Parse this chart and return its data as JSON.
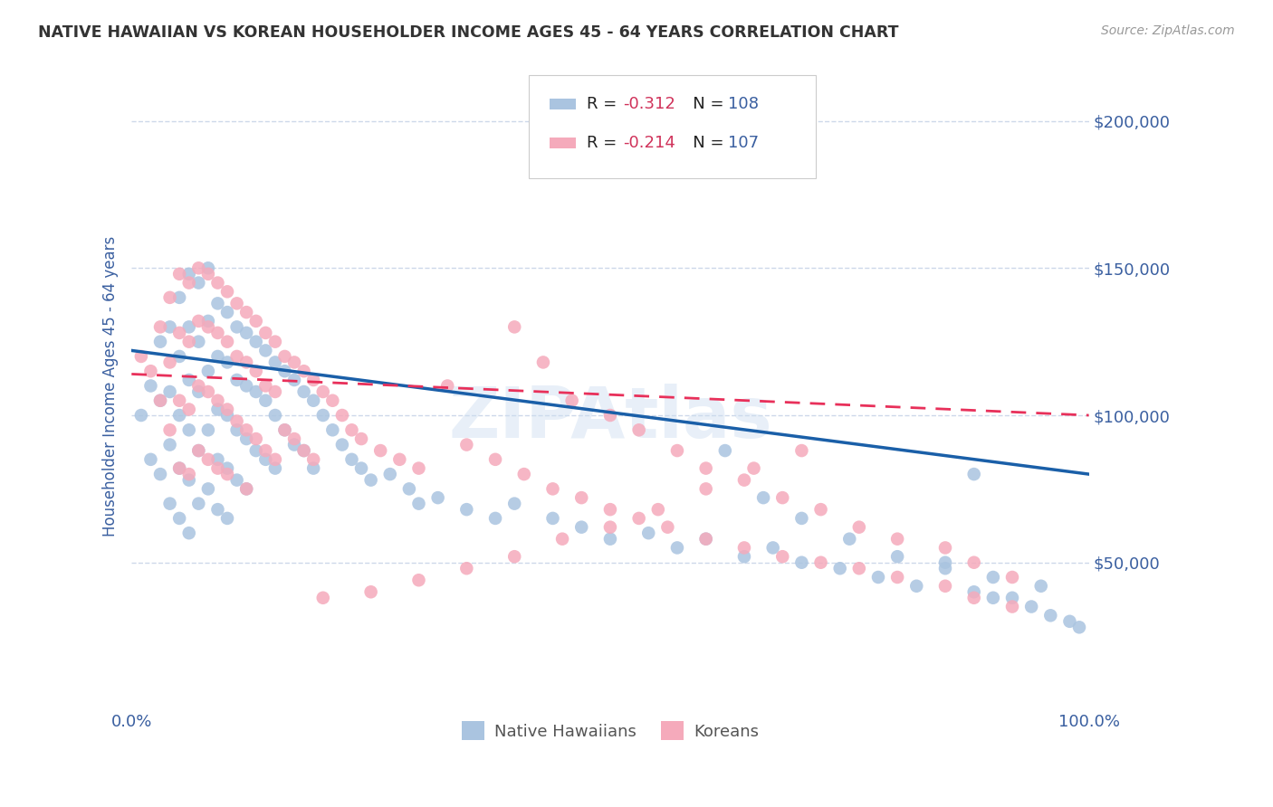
{
  "title": "NATIVE HAWAIIAN VS KOREAN HOUSEHOLDER INCOME AGES 45 - 64 YEARS CORRELATION CHART",
  "source": "Source: ZipAtlas.com",
  "ylabel": "Householder Income Ages 45 - 64 years",
  "ylim": [
    0,
    220000
  ],
  "xlim": [
    0,
    1.0
  ],
  "yticks": [
    50000,
    100000,
    150000,
    200000
  ],
  "ytick_labels": [
    "$50,000",
    "$100,000",
    "$150,000",
    "$200,000"
  ],
  "xtick_labels": [
    "0.0%",
    "100.0%"
  ],
  "hawaiian_color": "#aac4e0",
  "korean_color": "#f5aabb",
  "hawaiian_line_color": "#1a5fa8",
  "korean_line_color": "#e8305a",
  "hawaiian_R": "-0.312",
  "hawaiian_N": "108",
  "korean_R": "-0.214",
  "korean_N": "107",
  "hawaiian_intercept": 122000,
  "hawaiian_slope": -42000,
  "korean_intercept": 114000,
  "korean_slope": -14000,
  "background_color": "#ffffff",
  "grid_color": "#c8d4e8",
  "title_color": "#333333",
  "axis_label_color": "#3a5fa0",
  "tick_label_color": "#3a5fa0",
  "r_value_color": "#d0325a",
  "n_value_color": "#3a5fa0",
  "watermark": "ZIPAtlas",
  "hawaiian_scatter_x": [
    0.01,
    0.02,
    0.02,
    0.03,
    0.03,
    0.03,
    0.04,
    0.04,
    0.04,
    0.04,
    0.05,
    0.05,
    0.05,
    0.05,
    0.05,
    0.06,
    0.06,
    0.06,
    0.06,
    0.06,
    0.06,
    0.07,
    0.07,
    0.07,
    0.07,
    0.07,
    0.08,
    0.08,
    0.08,
    0.08,
    0.08,
    0.09,
    0.09,
    0.09,
    0.09,
    0.09,
    0.1,
    0.1,
    0.1,
    0.1,
    0.1,
    0.11,
    0.11,
    0.11,
    0.11,
    0.12,
    0.12,
    0.12,
    0.12,
    0.13,
    0.13,
    0.13,
    0.14,
    0.14,
    0.14,
    0.15,
    0.15,
    0.15,
    0.16,
    0.16,
    0.17,
    0.17,
    0.18,
    0.18,
    0.19,
    0.19,
    0.2,
    0.21,
    0.22,
    0.23,
    0.24,
    0.25,
    0.27,
    0.29,
    0.3,
    0.32,
    0.35,
    0.38,
    0.4,
    0.44,
    0.47,
    0.5,
    0.54,
    0.57,
    0.6,
    0.64,
    0.67,
    0.7,
    0.74,
    0.78,
    0.82,
    0.85,
    0.88,
    0.88,
    0.9,
    0.92,
    0.94,
    0.96,
    0.98,
    0.99,
    0.62,
    0.66,
    0.7,
    0.75,
    0.8,
    0.85,
    0.9,
    0.95
  ],
  "hawaiian_scatter_y": [
    100000,
    110000,
    85000,
    125000,
    105000,
    80000,
    130000,
    108000,
    90000,
    70000,
    140000,
    120000,
    100000,
    82000,
    65000,
    148000,
    130000,
    112000,
    95000,
    78000,
    60000,
    145000,
    125000,
    108000,
    88000,
    70000,
    150000,
    132000,
    115000,
    95000,
    75000,
    138000,
    120000,
    102000,
    85000,
    68000,
    135000,
    118000,
    100000,
    82000,
    65000,
    130000,
    112000,
    95000,
    78000,
    128000,
    110000,
    92000,
    75000,
    125000,
    108000,
    88000,
    122000,
    105000,
    85000,
    118000,
    100000,
    82000,
    115000,
    95000,
    112000,
    90000,
    108000,
    88000,
    105000,
    82000,
    100000,
    95000,
    90000,
    85000,
    82000,
    78000,
    80000,
    75000,
    70000,
    72000,
    68000,
    65000,
    70000,
    65000,
    62000,
    58000,
    60000,
    55000,
    58000,
    52000,
    55000,
    50000,
    48000,
    45000,
    42000,
    50000,
    40000,
    80000,
    38000,
    38000,
    35000,
    32000,
    30000,
    28000,
    88000,
    72000,
    65000,
    58000,
    52000,
    48000,
    45000,
    42000
  ],
  "korean_scatter_x": [
    0.01,
    0.02,
    0.03,
    0.03,
    0.04,
    0.04,
    0.04,
    0.05,
    0.05,
    0.05,
    0.05,
    0.06,
    0.06,
    0.06,
    0.06,
    0.07,
    0.07,
    0.07,
    0.07,
    0.08,
    0.08,
    0.08,
    0.08,
    0.09,
    0.09,
    0.09,
    0.09,
    0.1,
    0.1,
    0.1,
    0.1,
    0.11,
    0.11,
    0.11,
    0.12,
    0.12,
    0.12,
    0.12,
    0.13,
    0.13,
    0.13,
    0.14,
    0.14,
    0.14,
    0.15,
    0.15,
    0.15,
    0.16,
    0.16,
    0.17,
    0.17,
    0.18,
    0.18,
    0.19,
    0.19,
    0.2,
    0.21,
    0.22,
    0.23,
    0.24,
    0.26,
    0.28,
    0.3,
    0.33,
    0.35,
    0.38,
    0.41,
    0.44,
    0.47,
    0.5,
    0.53,
    0.56,
    0.6,
    0.64,
    0.68,
    0.72,
    0.76,
    0.8,
    0.85,
    0.88,
    0.92,
    0.4,
    0.43,
    0.46,
    0.5,
    0.53,
    0.57,
    0.6,
    0.64,
    0.68,
    0.72,
    0.76,
    0.8,
    0.85,
    0.88,
    0.92,
    0.7,
    0.65,
    0.6,
    0.55,
    0.5,
    0.45,
    0.4,
    0.35,
    0.3,
    0.25,
    0.2
  ],
  "korean_scatter_y": [
    120000,
    115000,
    130000,
    105000,
    140000,
    118000,
    95000,
    148000,
    128000,
    105000,
    82000,
    145000,
    125000,
    102000,
    80000,
    150000,
    132000,
    110000,
    88000,
    148000,
    130000,
    108000,
    85000,
    145000,
    128000,
    105000,
    82000,
    142000,
    125000,
    102000,
    80000,
    138000,
    120000,
    98000,
    135000,
    118000,
    95000,
    75000,
    132000,
    115000,
    92000,
    128000,
    110000,
    88000,
    125000,
    108000,
    85000,
    120000,
    95000,
    118000,
    92000,
    115000,
    88000,
    112000,
    85000,
    108000,
    105000,
    100000,
    95000,
    92000,
    88000,
    85000,
    82000,
    110000,
    90000,
    85000,
    80000,
    75000,
    72000,
    68000,
    65000,
    62000,
    58000,
    55000,
    52000,
    50000,
    48000,
    45000,
    42000,
    38000,
    35000,
    130000,
    118000,
    105000,
    100000,
    95000,
    88000,
    82000,
    78000,
    72000,
    68000,
    62000,
    58000,
    55000,
    50000,
    45000,
    88000,
    82000,
    75000,
    68000,
    62000,
    58000,
    52000,
    48000,
    44000,
    40000,
    38000
  ]
}
